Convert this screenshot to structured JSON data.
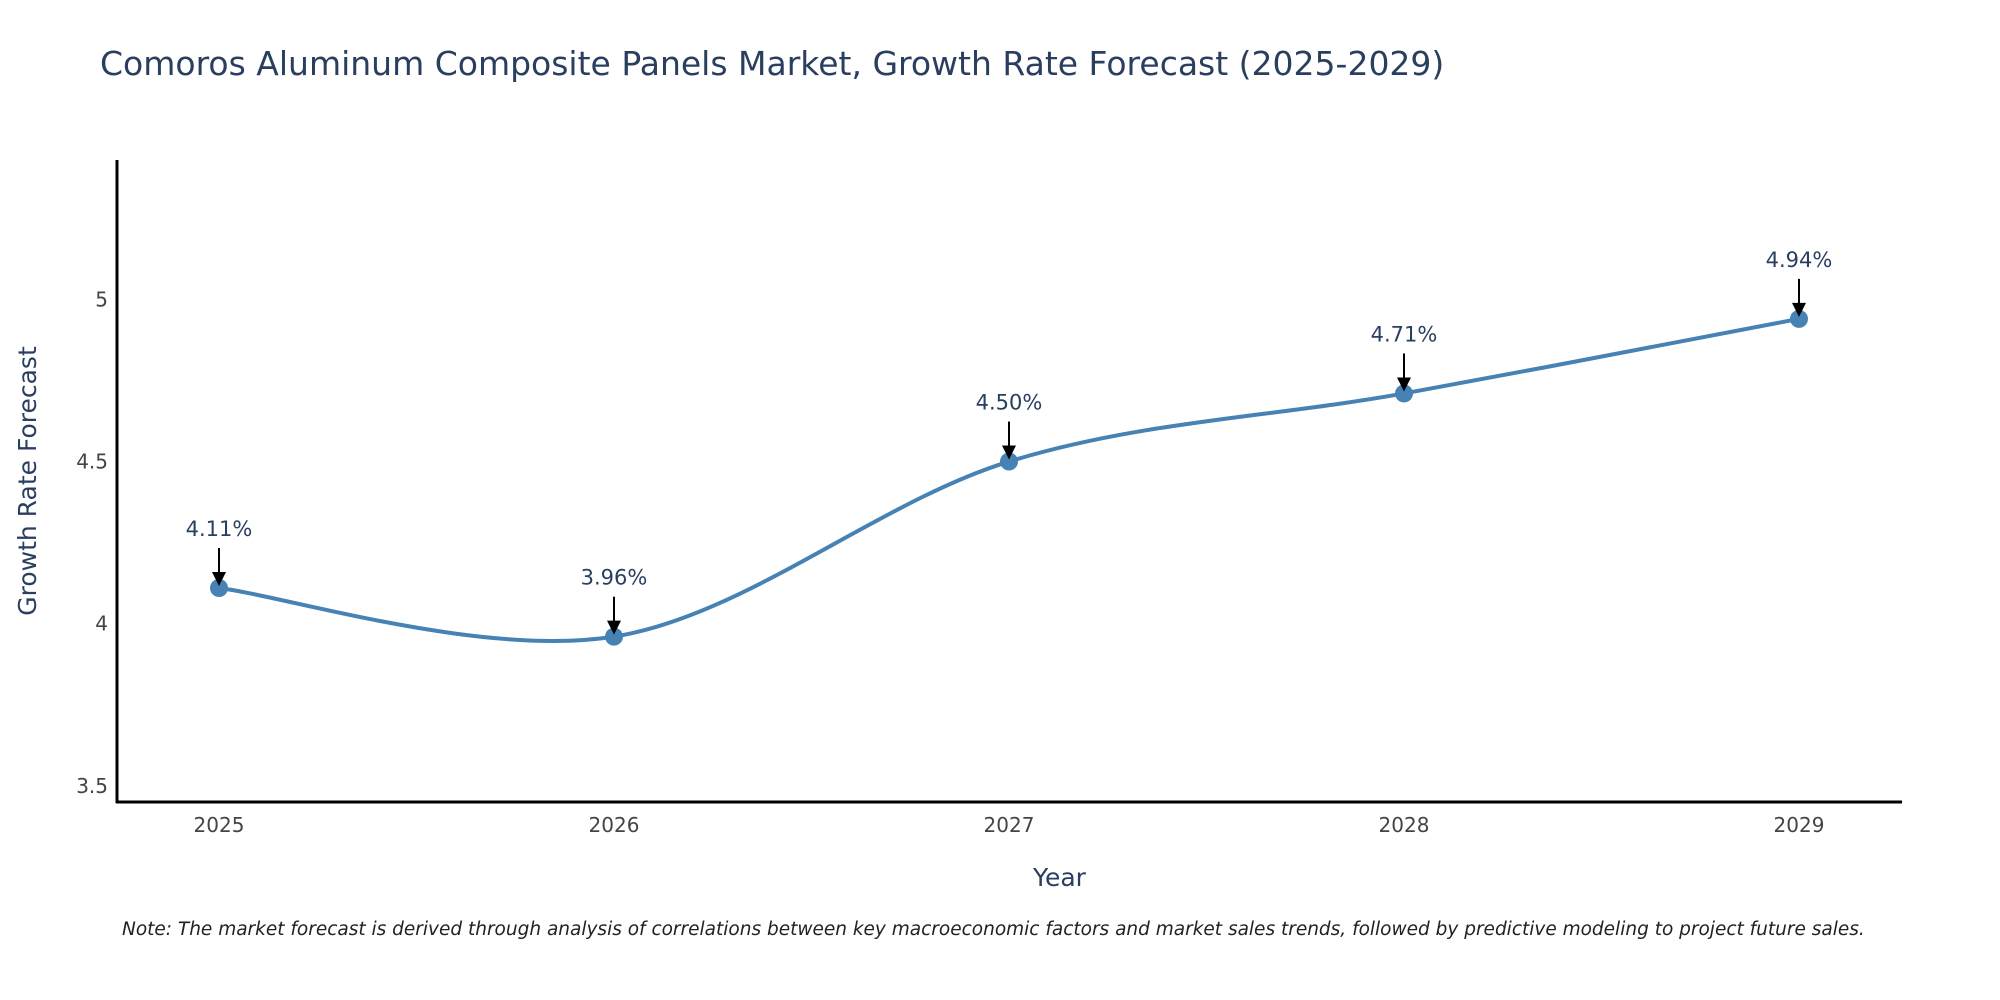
{
  "chart_data": {
    "type": "line",
    "title": "Comoros Aluminum Composite Panels Market, Growth Rate Forecast (2025-2029)",
    "xlabel": "Year",
    "ylabel": "Growth Rate Forecast",
    "categories": [
      "2025",
      "2026",
      "2027",
      "2028",
      "2029"
    ],
    "series": [
      {
        "name": "Growth Rate Forecast",
        "values": [
          4.11,
          3.96,
          4.5,
          4.71,
          4.94
        ],
        "labels": [
          "4.11%",
          "3.96%",
          "4.50%",
          "4.71%",
          "4.94%"
        ],
        "color": "#4682b4"
      }
    ],
    "ylim": [
      3.45,
      5.43
    ],
    "yticks": [
      3.5,
      4,
      4.5,
      5
    ],
    "ytick_labels": [
      "3.5",
      "4",
      "4.5",
      "5"
    ],
    "grid": false,
    "legend": "none",
    "note": "Note: The market forecast is derived through analysis of correlations between key macroeconomic factors and market sales trends, followed by predictive modeling to project future sales."
  }
}
